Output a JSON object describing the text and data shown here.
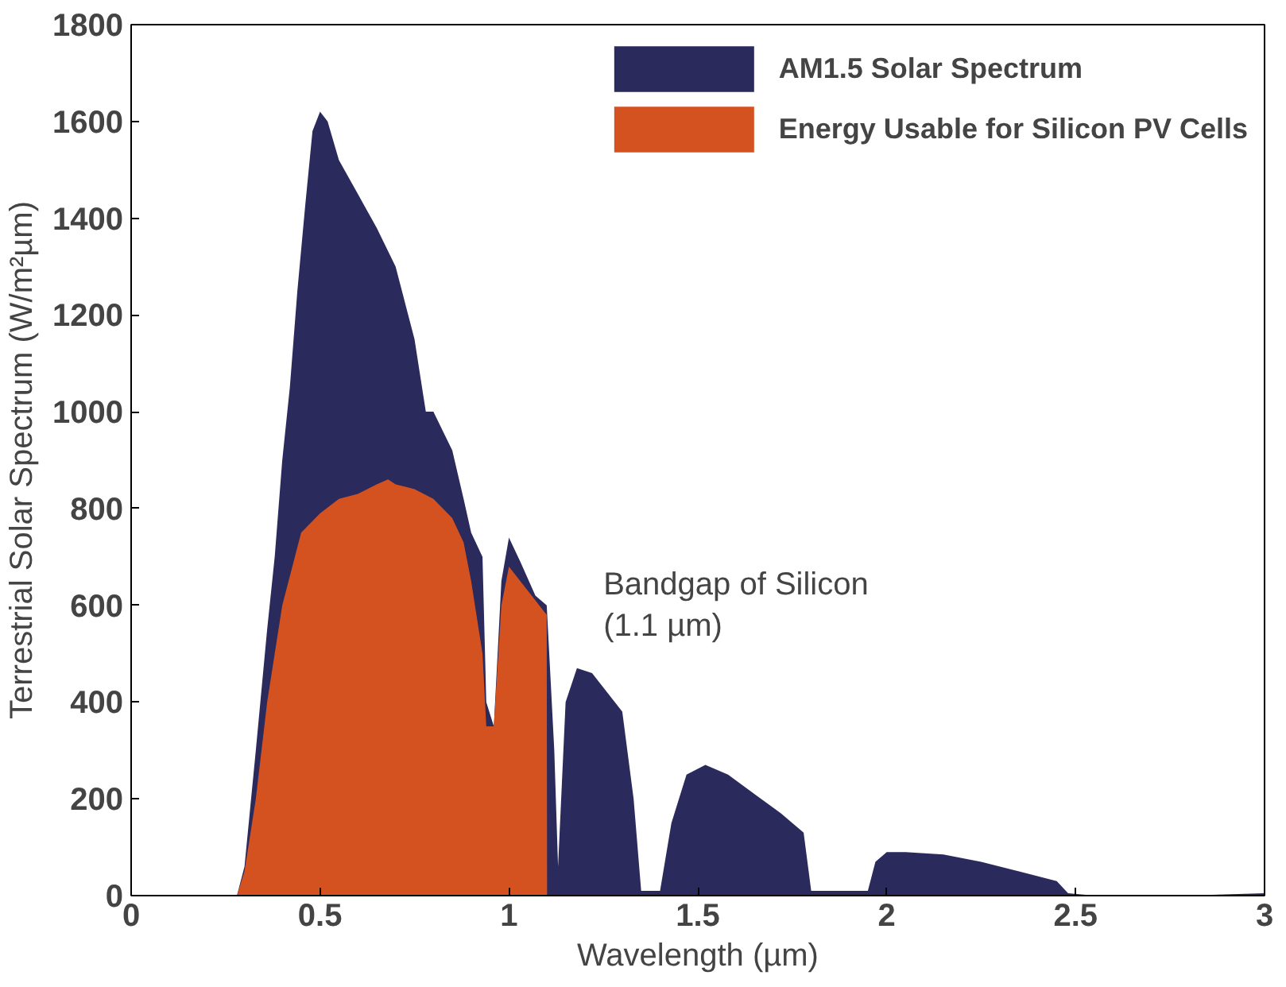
{
  "chart_data": {
    "type": "area",
    "xlabel": "Wavelength (µm)",
    "ylabel": "Terrestrial Solar Spectrum (W/m²µm)",
    "xlim": [
      0,
      3
    ],
    "ylim": [
      0,
      1800
    ],
    "xticks": [
      0,
      0.5,
      1,
      1.5,
      2,
      2.5,
      3
    ],
    "yticks": [
      0,
      200,
      400,
      600,
      800,
      1000,
      1200,
      1400,
      1600,
      1800
    ],
    "grid": false,
    "legend": "top right",
    "annotations": [
      "Bandgap of Silicon\n(1.1 µm)"
    ],
    "series": [
      {
        "name": "AM1.5 Solar Spectrum",
        "color": "#2b2a5c",
        "x": [
          0.28,
          0.3,
          0.33,
          0.36,
          0.38,
          0.4,
          0.42,
          0.44,
          0.46,
          0.48,
          0.5,
          0.52,
          0.55,
          0.6,
          0.65,
          0.7,
          0.75,
          0.78,
          0.8,
          0.85,
          0.88,
          0.9,
          0.93,
          0.94,
          0.96,
          0.98,
          1.0,
          1.03,
          1.07,
          1.1,
          1.12,
          1.13,
          1.15,
          1.18,
          1.22,
          1.26,
          1.3,
          1.33,
          1.35,
          1.4,
          1.43,
          1.47,
          1.52,
          1.58,
          1.65,
          1.72,
          1.78,
          1.8,
          1.95,
          1.97,
          2.0,
          2.05,
          2.15,
          2.25,
          2.35,
          2.45,
          2.48,
          2.55,
          2.8,
          3.0
        ],
        "values": [
          0,
          60,
          300,
          550,
          700,
          900,
          1050,
          1250,
          1420,
          1580,
          1620,
          1600,
          1520,
          1450,
          1380,
          1300,
          1150,
          1000,
          1000,
          920,
          820,
          750,
          700,
          400,
          350,
          650,
          740,
          690,
          620,
          600,
          300,
          60,
          400,
          470,
          460,
          420,
          380,
          200,
          10,
          10,
          150,
          250,
          270,
          250,
          210,
          170,
          130,
          10,
          10,
          70,
          90,
          90,
          85,
          70,
          50,
          30,
          5,
          0,
          0,
          5
        ]
      },
      {
        "name": "Energy Usable for Silicon PV Cells",
        "color": "#d4521f",
        "x": [
          0.28,
          0.3,
          0.33,
          0.36,
          0.4,
          0.45,
          0.5,
          0.55,
          0.6,
          0.65,
          0.68,
          0.7,
          0.75,
          0.8,
          0.85,
          0.88,
          0.9,
          0.93,
          0.94,
          0.96,
          0.98,
          1.0,
          1.03,
          1.07,
          1.1,
          1.101
        ],
        "values": [
          0,
          50,
          200,
          400,
          600,
          750,
          790,
          820,
          830,
          850,
          860,
          850,
          840,
          820,
          780,
          730,
          650,
          500,
          350,
          350,
          600,
          680,
          650,
          610,
          580,
          0
        ]
      }
    ]
  }
}
